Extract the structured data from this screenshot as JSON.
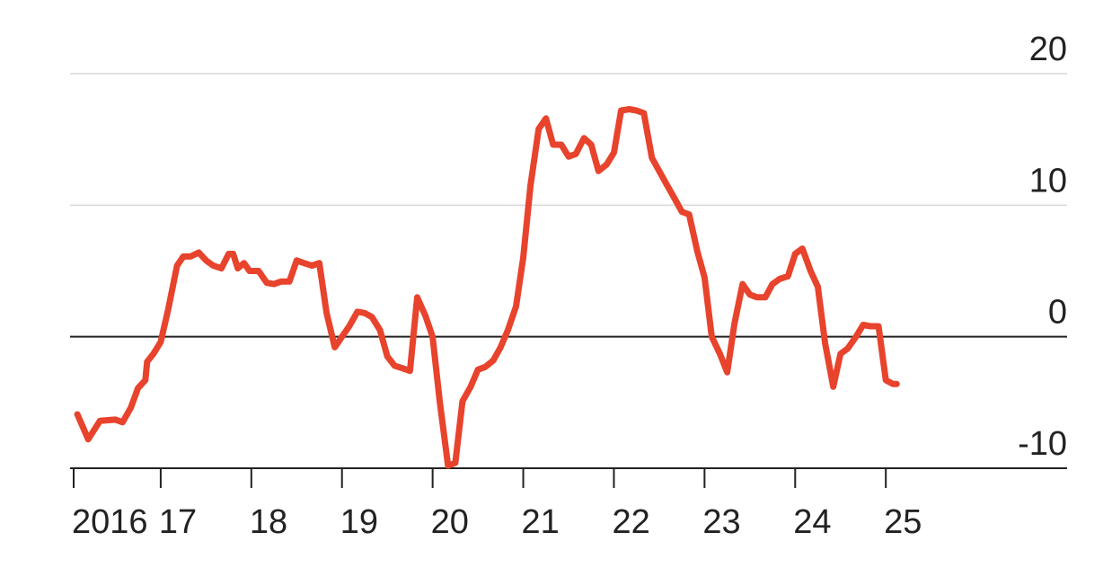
{
  "chart_data": {
    "type": "line",
    "title": "",
    "xlabel": "",
    "ylabel": "",
    "xlim": [
      2016,
      2027
    ],
    "ylim": [
      -10,
      20
    ],
    "grid": true,
    "y_ticks": [
      {
        "value": 20,
        "label": "20"
      },
      {
        "value": 10,
        "label": "10"
      },
      {
        "value": 0,
        "label": "0"
      },
      {
        "value": -10,
        "label": "-10"
      }
    ],
    "x_ticks": [
      {
        "value": 2016,
        "label": "2016"
      },
      {
        "value": 2017,
        "label": "17"
      },
      {
        "value": 2018,
        "label": "18"
      },
      {
        "value": 2019,
        "label": "19"
      },
      {
        "value": 2020,
        "label": "20"
      },
      {
        "value": 2021,
        "label": "21"
      },
      {
        "value": 2022,
        "label": "22"
      },
      {
        "value": 2023,
        "label": "23"
      },
      {
        "value": 2024,
        "label": "24"
      },
      {
        "value": 2025,
        "label": "25"
      }
    ],
    "series": [
      {
        "color": "#e8432c",
        "points": [
          [
            2016.08,
            -5.9
          ],
          [
            2016.2,
            -7.8
          ],
          [
            2016.33,
            -6.4
          ],
          [
            2016.5,
            -6.3
          ],
          [
            2016.58,
            -6.5
          ],
          [
            2016.67,
            -5.4
          ],
          [
            2016.75,
            -3.9
          ],
          [
            2016.83,
            -3.3
          ],
          [
            2016.85,
            -1.9
          ],
          [
            2016.92,
            -1.3
          ],
          [
            2017.0,
            -0.4
          ],
          [
            2017.08,
            2.0
          ],
          [
            2017.18,
            5.4
          ],
          [
            2017.25,
            6.1
          ],
          [
            2017.33,
            6.1
          ],
          [
            2017.42,
            6.4
          ],
          [
            2017.5,
            5.8
          ],
          [
            2017.58,
            5.4
          ],
          [
            2017.67,
            5.2
          ],
          [
            2017.75,
            6.3
          ],
          [
            2017.8,
            6.3
          ],
          [
            2017.85,
            5.2
          ],
          [
            2017.92,
            5.6
          ],
          [
            2017.98,
            5.0
          ],
          [
            2018.08,
            5.0
          ],
          [
            2018.17,
            4.1
          ],
          [
            2018.25,
            4.0
          ],
          [
            2018.33,
            4.2
          ],
          [
            2018.42,
            4.2
          ],
          [
            2018.5,
            5.8
          ],
          [
            2018.58,
            5.6
          ],
          [
            2018.67,
            5.4
          ],
          [
            2018.75,
            5.6
          ],
          [
            2018.83,
            1.8
          ],
          [
            2018.92,
            -0.8
          ],
          [
            2019.0,
            0.0
          ],
          [
            2019.08,
            0.8
          ],
          [
            2019.17,
            1.9
          ],
          [
            2019.25,
            1.8
          ],
          [
            2019.33,
            1.5
          ],
          [
            2019.42,
            0.5
          ],
          [
            2019.5,
            -1.5
          ],
          [
            2019.58,
            -2.2
          ],
          [
            2019.67,
            -2.4
          ],
          [
            2019.75,
            -2.6
          ],
          [
            2019.83,
            3.0
          ],
          [
            2019.92,
            1.6
          ],
          [
            2020.0,
            0.0
          ],
          [
            2020.08,
            -5.0
          ],
          [
            2020.17,
            -9.8
          ],
          [
            2020.25,
            -9.6
          ],
          [
            2020.33,
            -4.9
          ],
          [
            2020.42,
            -3.8
          ],
          [
            2020.5,
            -2.5
          ],
          [
            2020.58,
            -2.3
          ],
          [
            2020.67,
            -1.8
          ],
          [
            2020.75,
            -0.8
          ],
          [
            2020.83,
            0.5
          ],
          [
            2020.92,
            2.3
          ],
          [
            2021.0,
            6.0
          ],
          [
            2021.08,
            11.5
          ],
          [
            2021.17,
            15.8
          ],
          [
            2021.25,
            16.6
          ],
          [
            2021.33,
            14.6
          ],
          [
            2021.42,
            14.6
          ],
          [
            2021.5,
            13.7
          ],
          [
            2021.58,
            13.9
          ],
          [
            2021.67,
            15.1
          ],
          [
            2021.75,
            14.6
          ],
          [
            2021.83,
            12.6
          ],
          [
            2021.92,
            13.1
          ],
          [
            2022.0,
            14.0
          ],
          [
            2022.08,
            17.2
          ],
          [
            2022.17,
            17.3
          ],
          [
            2022.25,
            17.2
          ],
          [
            2022.33,
            17.0
          ],
          [
            2022.42,
            13.6
          ],
          [
            2022.5,
            12.6
          ],
          [
            2022.58,
            11.6
          ],
          [
            2022.67,
            10.5
          ],
          [
            2022.75,
            9.5
          ],
          [
            2022.83,
            9.3
          ],
          [
            2022.92,
            6.5
          ],
          [
            2023.0,
            4.5
          ],
          [
            2023.08,
            0.0
          ],
          [
            2023.17,
            -1.3
          ],
          [
            2023.25,
            -2.7
          ],
          [
            2023.33,
            1.0
          ],
          [
            2023.42,
            4.0
          ],
          [
            2023.5,
            3.2
          ],
          [
            2023.58,
            3.0
          ],
          [
            2023.67,
            3.0
          ],
          [
            2023.75,
            4.0
          ],
          [
            2023.83,
            4.4
          ],
          [
            2023.92,
            4.6
          ],
          [
            2024.0,
            6.3
          ],
          [
            2024.08,
            6.7
          ],
          [
            2024.17,
            5.0
          ],
          [
            2024.25,
            3.8
          ],
          [
            2024.33,
            -0.5
          ],
          [
            2024.42,
            -3.8
          ],
          [
            2024.5,
            -1.3
          ],
          [
            2024.58,
            -0.9
          ],
          [
            2024.67,
            0.0
          ],
          [
            2024.75,
            0.9
          ],
          [
            2024.83,
            0.8
          ],
          [
            2024.92,
            0.8
          ],
          [
            2025.0,
            -3.3
          ],
          [
            2025.08,
            -3.6
          ],
          [
            2025.12,
            -3.6
          ]
        ]
      }
    ]
  }
}
